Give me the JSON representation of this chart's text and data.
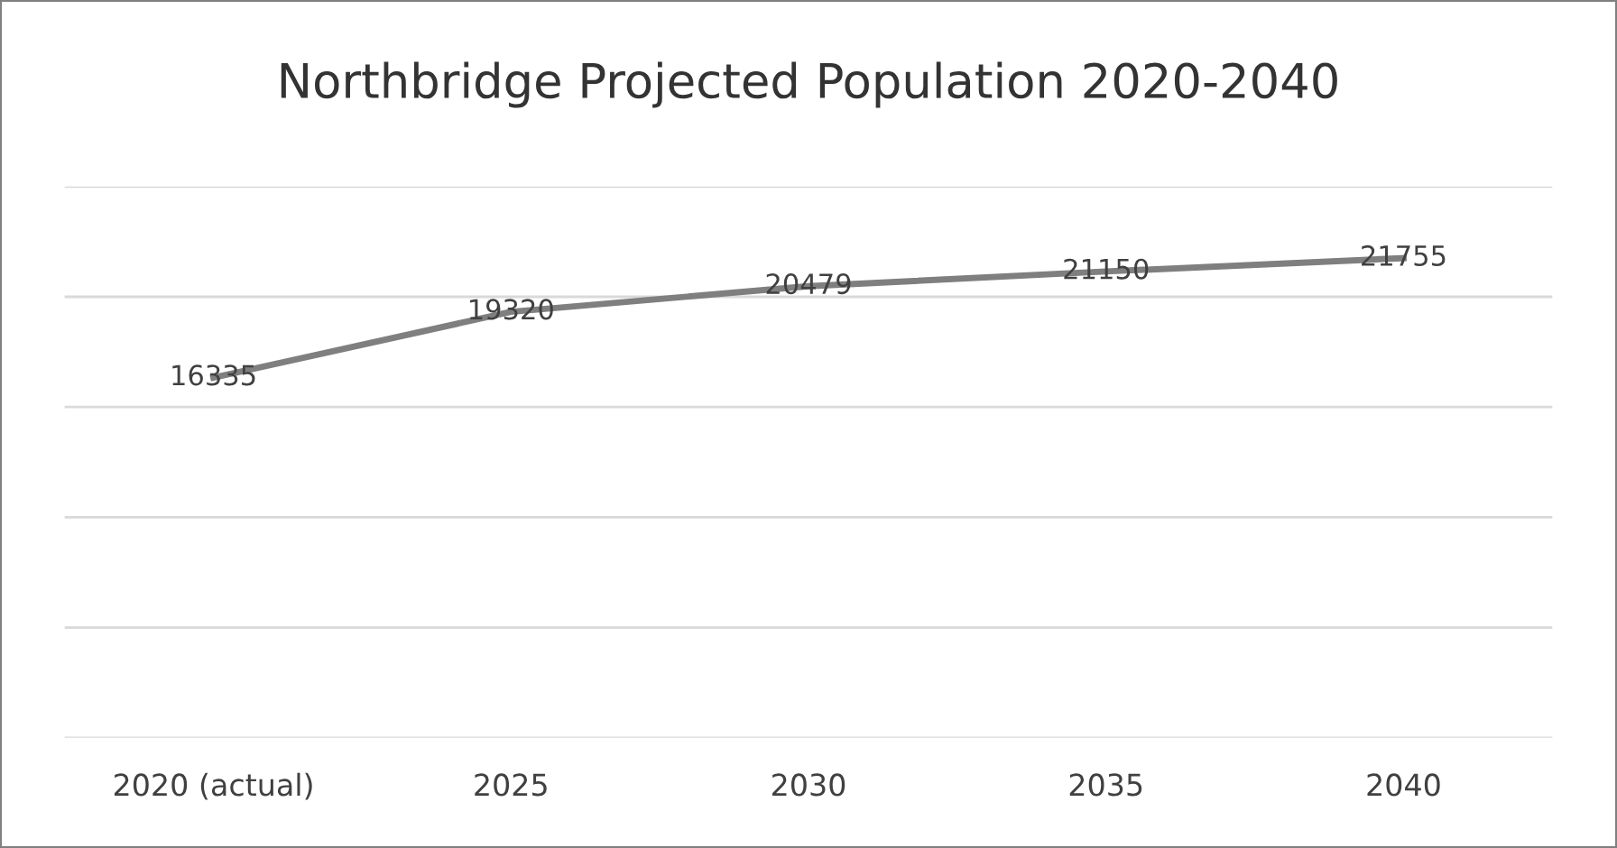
{
  "chart_data": {
    "type": "line",
    "title": "Northbridge Projected Population 2020-2040",
    "categories": [
      "2020 (actual)",
      "2025",
      "2030",
      "2035",
      "2040"
    ],
    "series": [
      {
        "color": "#7f7f7f",
        "values": [
          16335,
          19320,
          20479,
          21150,
          21755
        ]
      }
    ],
    "ylim": [
      0,
      25000
    ],
    "yticks": [
      {
        "value": 0,
        "label": null
      },
      {
        "value": 5000,
        "label": null
      },
      {
        "value": 10000,
        "label": null
      },
      {
        "value": 15000,
        "label": null
      },
      {
        "value": 20000,
        "label": null
      },
      {
        "value": 25000,
        "label": null
      }
    ],
    "tick_labels": "x",
    "grid": "y",
    "data_labels": true,
    "marker": "none",
    "line_style": "solid",
    "legend": false
  }
}
